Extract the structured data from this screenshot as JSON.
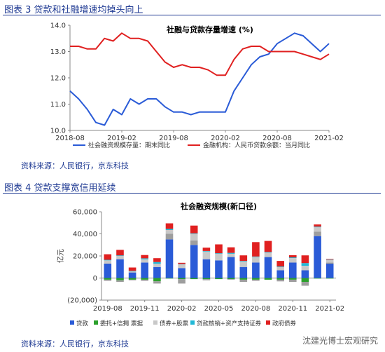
{
  "figure1": {
    "title": "图表 3 贷款和社融增速均掉头向上",
    "source": "资料来源：人民银行，京东科技"
  },
  "figure2": {
    "title": "图表 4 贷款支撑宽信用延续",
    "source": "资料来源：人民银行，京东科技"
  },
  "watermark": "沈建光博士宏观研究",
  "colors": {
    "blue": "#2a5bd7",
    "red": "#e02020",
    "green": "#2ca02c",
    "gray": "#9e9e9e",
    "lightgray": "#c8c8c8",
    "cyan": "#22b8d6",
    "header": "#1f3a93"
  },
  "chart_data": [
    {
      "type": "line",
      "title": "社融与贷款存量增速 (%)",
      "x_ticks": [
        "2018-08",
        "2019-02",
        "2019-08",
        "2020-02",
        "2020-08",
        "2021-02"
      ],
      "ylim": [
        10.0,
        14.0
      ],
      "y_ticks": [
        "10.0",
        "11.0",
        "12.0",
        "13.0",
        "14.0"
      ],
      "series": [
        {
          "name": "社会融资规模存量：期末同比",
          "color": "#2a5bd7",
          "x": [
            "2018-08",
            "2018-09",
            "2018-10",
            "2018-11",
            "2018-12",
            "2019-01",
            "2019-02",
            "2019-03",
            "2019-04",
            "2019-05",
            "2019-06",
            "2019-07",
            "2019-08",
            "2019-09",
            "2019-10",
            "2019-11",
            "2019-12",
            "2020-01",
            "2020-02",
            "2020-03",
            "2020-04",
            "2020-05",
            "2020-06",
            "2020-07",
            "2020-08",
            "2020-09",
            "2020-10",
            "2020-11",
            "2020-12",
            "2021-01",
            "2021-02"
          ],
          "values": [
            11.5,
            11.2,
            10.8,
            10.3,
            10.2,
            10.8,
            10.6,
            11.2,
            11.0,
            11.2,
            11.2,
            10.9,
            10.7,
            10.7,
            10.6,
            10.7,
            10.7,
            10.7,
            10.7,
            11.5,
            12.0,
            12.5,
            12.8,
            12.9,
            13.3,
            13.5,
            13.7,
            13.6,
            13.3,
            13.0,
            13.3
          ]
        },
        {
          "name": "金融机构：人民币贷款余额：当月同比",
          "color": "#e02020",
          "x": [
            "2018-08",
            "2018-09",
            "2018-10",
            "2018-11",
            "2018-12",
            "2019-01",
            "2019-02",
            "2019-03",
            "2019-04",
            "2019-05",
            "2019-06",
            "2019-07",
            "2019-08",
            "2019-09",
            "2019-10",
            "2019-11",
            "2019-12",
            "2020-01",
            "2020-02",
            "2020-03",
            "2020-04",
            "2020-05",
            "2020-06",
            "2020-07",
            "2020-08",
            "2020-09",
            "2020-10",
            "2020-11",
            "2020-12",
            "2021-01",
            "2021-02"
          ],
          "values": [
            13.2,
            13.2,
            13.1,
            13.1,
            13.5,
            13.4,
            13.7,
            13.5,
            13.5,
            13.4,
            13.0,
            12.6,
            12.4,
            12.5,
            12.4,
            12.4,
            12.3,
            12.1,
            12.1,
            12.7,
            13.1,
            13.2,
            13.2,
            13.0,
            13.0,
            13.0,
            13.0,
            12.9,
            12.8,
            12.7,
            12.9
          ]
        }
      ]
    },
    {
      "type": "bar",
      "stacked": true,
      "title": "社会融资规模(新口径)",
      "ylabel": "亿元",
      "ylim": [
        -20000,
        60000
      ],
      "y_ticks": [
        "(20,000)",
        "0",
        "20,000",
        "40,000",
        "60,000"
      ],
      "x_ticks": [
        "2019-08",
        "2019-11",
        "2020-02",
        "2020-05",
        "2020-08",
        "2020-11",
        "2021-02"
      ],
      "categories": [
        "2019-08",
        "2019-09",
        "2019-10",
        "2019-11",
        "2019-12",
        "2020-01",
        "2020-02",
        "2020-03",
        "2020-04",
        "2020-05",
        "2020-06",
        "2020-07",
        "2020-08",
        "2020-09",
        "2020-10",
        "2020-11",
        "2020-12",
        "2021-01",
        "2021-02"
      ],
      "series": [
        {
          "name": "贷款",
          "color": "#2a5bd7",
          "values": [
            13000,
            17000,
            5000,
            14000,
            10000,
            35000,
            9000,
            30000,
            17000,
            16000,
            19000,
            10000,
            14000,
            19000,
            7000,
            14000,
            7000,
            38000,
            13000
          ]
        },
        {
          "name": "委托+信托",
          "color": "#2ca02c",
          "values": [
            -1500,
            -2000,
            -1500,
            -1500,
            -3000,
            -500,
            -1000,
            -1000,
            -1000,
            -1000,
            -1000,
            -1500,
            -1500,
            -1500,
            -1500,
            -1500,
            -3500,
            -500,
            -500
          ]
        },
        {
          "name": "票据",
          "color": "#9e9e9e",
          "values": [
            -1000,
            -1500,
            -500,
            -1000,
            -2000,
            5000,
            -4000,
            4000,
            -1000,
            0,
            -500,
            -2000,
            -1000,
            0,
            -1500,
            -2000,
            -3500,
            4000,
            1000
          ]
        },
        {
          "name": "债券+股票",
          "color": "#c8c8c8",
          "values": [
            3000,
            3000,
            1000,
            3000,
            3000,
            3500,
            3500,
            6000,
            7000,
            6000,
            3000,
            5000,
            5000,
            4000,
            3000,
            4000,
            4000,
            4000,
            2500
          ]
        },
        {
          "name": "贷款核销+资产支持证券",
          "color": "#22b8d6",
          "values": [
            500,
            500,
            500,
            800,
            1500,
            1000,
            300,
            500,
            500,
            500,
            800,
            500,
            500,
            600,
            500,
            700,
            2500,
            500,
            300
          ]
        },
        {
          "name": "政府债券",
          "color": "#e02020",
          "values": [
            5000,
            5000,
            3000,
            3000,
            3500,
            5000,
            1000,
            7000,
            3000,
            8000,
            5000,
            5000,
            13000,
            10000,
            5000,
            2000,
            7000,
            2000,
            500
          ]
        }
      ]
    }
  ]
}
